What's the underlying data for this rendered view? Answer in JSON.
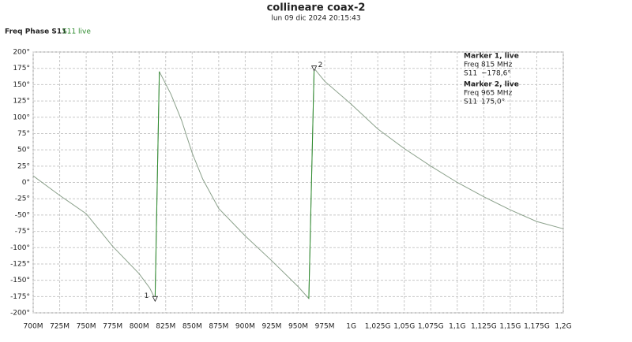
{
  "chart_data": {
    "type": "line",
    "title": "collineare coax-2",
    "subtitle": "lun 09 dic 2024 20:15:43",
    "plot_label": "Freq Phase S11",
    "x": [
      700,
      725,
      750,
      775,
      800,
      810,
      815,
      819,
      830,
      840,
      850,
      860,
      875,
      900,
      925,
      950,
      960,
      965,
      975,
      1000,
      1025,
      1050,
      1075,
      1100,
      1125,
      1150,
      1175,
      1200
    ],
    "series": [
      {
        "name": "S11 live",
        "color": "#2e8b2e",
        "line_color": "#8aa08a",
        "values": [
          10,
          -20,
          -48,
          -98,
          -140,
          -162,
          -178.6,
          170,
          135,
          95,
          45,
          5,
          -40,
          -82,
          -120,
          -160,
          -178,
          175,
          155,
          120,
          82,
          52,
          25,
          0,
          -22,
          -42,
          -60,
          -71
        ]
      }
    ],
    "xlim": [
      700,
      1200
    ],
    "ylim": [
      -200,
      200
    ],
    "xticks": [
      {
        "value": 700,
        "label": "700M"
      },
      {
        "value": 725,
        "label": "725M"
      },
      {
        "value": 750,
        "label": "750M"
      },
      {
        "value": 775,
        "label": "775M"
      },
      {
        "value": 800,
        "label": "800M"
      },
      {
        "value": 825,
        "label": "825M"
      },
      {
        "value": 850,
        "label": "850M"
      },
      {
        "value": 875,
        "label": "875M"
      },
      {
        "value": 900,
        "label": "900M"
      },
      {
        "value": 925,
        "label": "925M"
      },
      {
        "value": 950,
        "label": "950M"
      },
      {
        "value": 975,
        "label": "975M"
      },
      {
        "value": 1000,
        "label": "1G"
      },
      {
        "value": 1025,
        "label": "1,025G"
      },
      {
        "value": 1050,
        "label": "1,05G"
      },
      {
        "value": 1075,
        "label": "1,075G"
      },
      {
        "value": 1100,
        "label": "1,1G"
      },
      {
        "value": 1125,
        "label": "1,125G"
      },
      {
        "value": 1150,
        "label": "1,15G"
      },
      {
        "value": 1175,
        "label": "1,175G"
      },
      {
        "value": 1200,
        "label": "1,2G"
      }
    ],
    "yticks": [
      {
        "value": 200,
        "label": "200°"
      },
      {
        "value": 175,
        "label": "175°"
      },
      {
        "value": 150,
        "label": "150°"
      },
      {
        "value": 125,
        "label": "125°"
      },
      {
        "value": 100,
        "label": "100°"
      },
      {
        "value": 75,
        "label": "75°"
      },
      {
        "value": 50,
        "label": "50°"
      },
      {
        "value": 25,
        "label": "25°"
      },
      {
        "value": 0,
        "label": "0°"
      },
      {
        "value": -25,
        "label": "-25°"
      },
      {
        "value": -50,
        "label": "-50°"
      },
      {
        "value": -75,
        "label": "-75°"
      },
      {
        "value": -100,
        "label": "-100°"
      },
      {
        "value": -125,
        "label": "-125°"
      },
      {
        "value": -150,
        "label": "-150°"
      },
      {
        "value": -175,
        "label": "-175°"
      },
      {
        "value": -200,
        "label": "-200°"
      }
    ],
    "grid": true,
    "markers": [
      {
        "label": "1",
        "name": "Marker 1, live",
        "freq_label": "Freq",
        "x": 815,
        "x_label": "815 MHz",
        "param_label": "S11",
        "y": -178.6,
        "y_label": "−178,6°"
      },
      {
        "label": "2",
        "name": "Marker 2, live",
        "freq_label": "Freq",
        "x": 965,
        "x_label": "965 MHz",
        "param_label": "S11",
        "y": 175,
        "y_label": "175,0°"
      }
    ]
  }
}
